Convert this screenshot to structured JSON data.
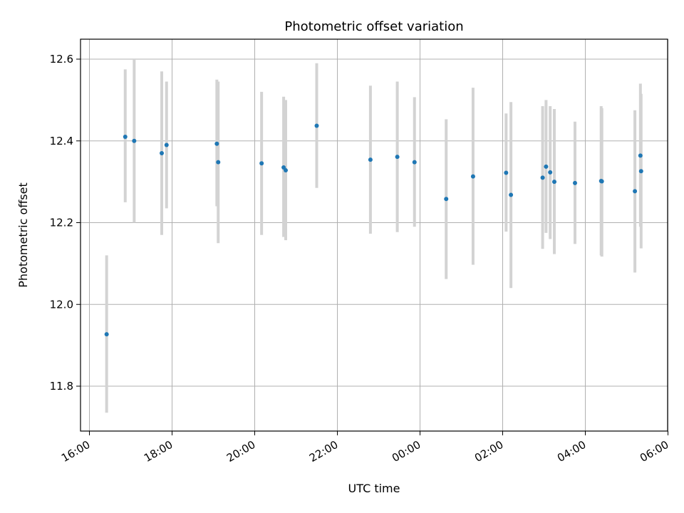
{
  "chart_data": {
    "type": "scatter",
    "title": "Photometric offset variation",
    "xlabel": "UTC time",
    "ylabel": "Photometric offset",
    "x_axis_kind": "time",
    "x_range": [
      "16:00",
      "06:00"
    ],
    "x_span_hours": 14,
    "x_tick_labels": [
      "16:00",
      "18:00",
      "20:00",
      "22:00",
      "00:00",
      "02:00",
      "04:00",
      "06:00"
    ],
    "ylim": [
      11.69,
      12.65
    ],
    "y_ticks": [
      11.8,
      12.0,
      12.2,
      12.4,
      12.6
    ],
    "y_tick_labels": [
      "11.8",
      "12.0",
      "12.2",
      "12.4",
      "12.6"
    ],
    "grid": true,
    "colors": {
      "point": "#1f77b4",
      "errorbar": "#d3d3d3",
      "grid": "#b0b0b0"
    },
    "points": [
      {
        "time": "16:25",
        "y": 11.927,
        "lo": 11.735,
        "hi": 12.12
      },
      {
        "time": "16:52",
        "y": 12.41,
        "lo": 12.25,
        "hi": 12.575
      },
      {
        "time": "17:05",
        "y": 12.4,
        "lo": 12.2,
        "hi": 12.6
      },
      {
        "time": "17:45",
        "y": 12.37,
        "lo": 12.17,
        "hi": 12.57
      },
      {
        "time": "17:52",
        "y": 12.39,
        "lo": 12.235,
        "hi": 12.545
      },
      {
        "time": "19:05",
        "y": 12.393,
        "lo": 12.24,
        "hi": 12.55
      },
      {
        "time": "19:07",
        "y": 12.348,
        "lo": 12.15,
        "hi": 12.545
      },
      {
        "time": "20:10",
        "y": 12.345,
        "lo": 12.17,
        "hi": 12.52
      },
      {
        "time": "20:42",
        "y": 12.335,
        "lo": 12.165,
        "hi": 12.508
      },
      {
        "time": "20:45",
        "y": 12.328,
        "lo": 12.157,
        "hi": 12.5
      },
      {
        "time": "21:30",
        "y": 12.437,
        "lo": 12.285,
        "hi": 12.59
      },
      {
        "time": "22:48",
        "y": 12.354,
        "lo": 12.173,
        "hi": 12.535
      },
      {
        "time": "23:27",
        "y": 12.361,
        "lo": 12.177,
        "hi": 12.545
      },
      {
        "time": "23:52",
        "y": 12.348,
        "lo": 12.19,
        "hi": 12.507
      },
      {
        "time": "00:38",
        "y": 12.258,
        "lo": 12.062,
        "hi": 12.453
      },
      {
        "time": "01:17",
        "y": 12.313,
        "lo": 12.097,
        "hi": 12.53
      },
      {
        "time": "02:05",
        "y": 12.322,
        "lo": 12.178,
        "hi": 12.467
      },
      {
        "time": "02:12",
        "y": 12.268,
        "lo": 12.04,
        "hi": 12.495
      },
      {
        "time": "02:58",
        "y": 12.31,
        "lo": 12.136,
        "hi": 12.485
      },
      {
        "time": "03:03",
        "y": 12.337,
        "lo": 12.175,
        "hi": 12.5
      },
      {
        "time": "03:09",
        "y": 12.323,
        "lo": 12.16,
        "hi": 12.485
      },
      {
        "time": "03:15",
        "y": 12.3,
        "lo": 12.123,
        "hi": 12.478
      },
      {
        "time": "03:45",
        "y": 12.297,
        "lo": 12.148,
        "hi": 12.447
      },
      {
        "time": "04:23",
        "y": 12.302,
        "lo": 12.12,
        "hi": 12.485
      },
      {
        "time": "04:24",
        "y": 12.301,
        "lo": 12.117,
        "hi": 12.48
      },
      {
        "time": "05:12",
        "y": 12.277,
        "lo": 12.078,
        "hi": 12.475
      },
      {
        "time": "05:20",
        "y": 12.364,
        "lo": 12.19,
        "hi": 12.54
      },
      {
        "time": "05:21",
        "y": 12.326,
        "lo": 12.137,
        "hi": 12.515
      }
    ]
  }
}
